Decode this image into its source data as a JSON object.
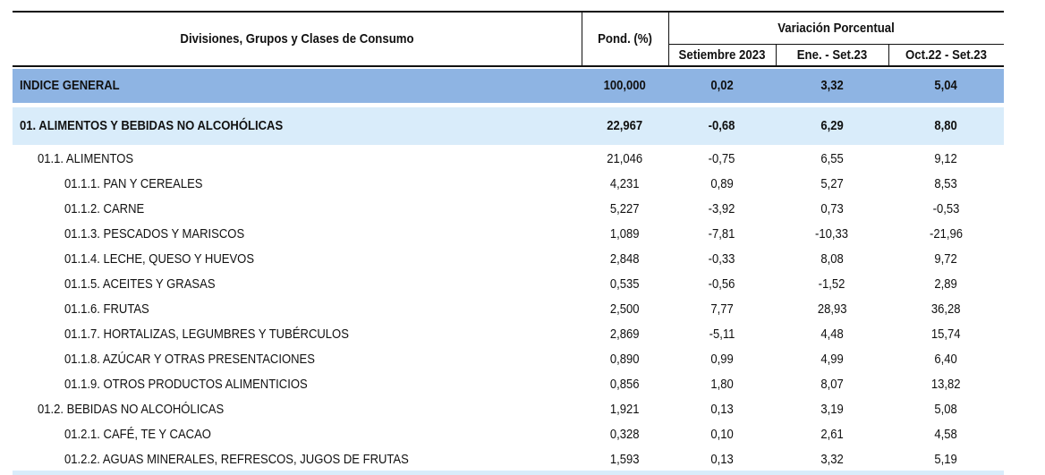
{
  "header": {
    "col_desc": "Divisiones, Grupos y Clases de Consumo",
    "col_pond": "Pond. (%)",
    "group_title": "Variación Porcentual",
    "col_month": "Setiembre 2023",
    "col_ytd": "Ene. - Set.23",
    "col_12m": "Oct.22 - Set.23"
  },
  "rows": [
    {
      "label": "INDICE GENERAL",
      "pond": "100,000",
      "month": "0,02",
      "ytd": "3,32",
      "m12": "5,04"
    },
    {
      "label": "01. ALIMENTOS Y BEBIDAS NO ALCOHÓLICAS",
      "pond": "22,967",
      "month": "-0,68",
      "ytd": "6,29",
      "m12": "8,80"
    },
    {
      "label": "01.1. ALIMENTOS",
      "pond": "21,046",
      "month": "-0,75",
      "ytd": "6,55",
      "m12": "9,12"
    },
    {
      "label": "01.1.1. PAN Y CEREALES",
      "pond": "4,231",
      "month": "0,89",
      "ytd": "5,27",
      "m12": "8,53"
    },
    {
      "label": "01.1.2. CARNE",
      "pond": "5,227",
      "month": "-3,92",
      "ytd": "0,73",
      "m12": "-0,53"
    },
    {
      "label": "01.1.3. PESCADOS Y MARISCOS",
      "pond": "1,089",
      "month": "-7,81",
      "ytd": "-10,33",
      "m12": "-21,96"
    },
    {
      "label": "01.1.4. LECHE, QUESO Y HUEVOS",
      "pond": "2,848",
      "month": "-0,33",
      "ytd": "8,08",
      "m12": "9,72"
    },
    {
      "label": "01.1.5. ACEITES Y GRASAS",
      "pond": "0,535",
      "month": "-0,56",
      "ytd": "-1,52",
      "m12": "2,89"
    },
    {
      "label": "01.1.6. FRUTAS",
      "pond": "2,500",
      "month": "7,77",
      "ytd": "28,93",
      "m12": "36,28"
    },
    {
      "label": "01.1.7. HORTALIZAS, LEGUMBRES Y TUBÉRCULOS",
      "pond": "2,869",
      "month": "-5,11",
      "ytd": "4,48",
      "m12": "15,74"
    },
    {
      "label": "01.1.8. AZÚCAR Y OTRAS PRESENTACIONES",
      "pond": "0,890",
      "month": "0,99",
      "ytd": "4,99",
      "m12": "6,40"
    },
    {
      "label": "01.1.9. OTROS PRODUCTOS ALIMENTICIOS",
      "pond": "0,856",
      "month": "1,80",
      "ytd": "8,07",
      "m12": "13,82"
    },
    {
      "label": "01.2. BEBIDAS NO ALCOHÓLICAS",
      "pond": "1,921",
      "month": "0,13",
      "ytd": "3,19",
      "m12": "5,08"
    },
    {
      "label": "01.2.1. CAFÉ, TE Y CACAO",
      "pond": "0,328",
      "month": "0,10",
      "ytd": "2,61",
      "m12": "4,58"
    },
    {
      "label": "01.2.2. AGUAS MINERALES, REFRESCOS, JUGOS DE FRUTAS",
      "pond": "1,593",
      "month": "0,13",
      "ytd": "3,32",
      "m12": "5,19"
    }
  ]
}
